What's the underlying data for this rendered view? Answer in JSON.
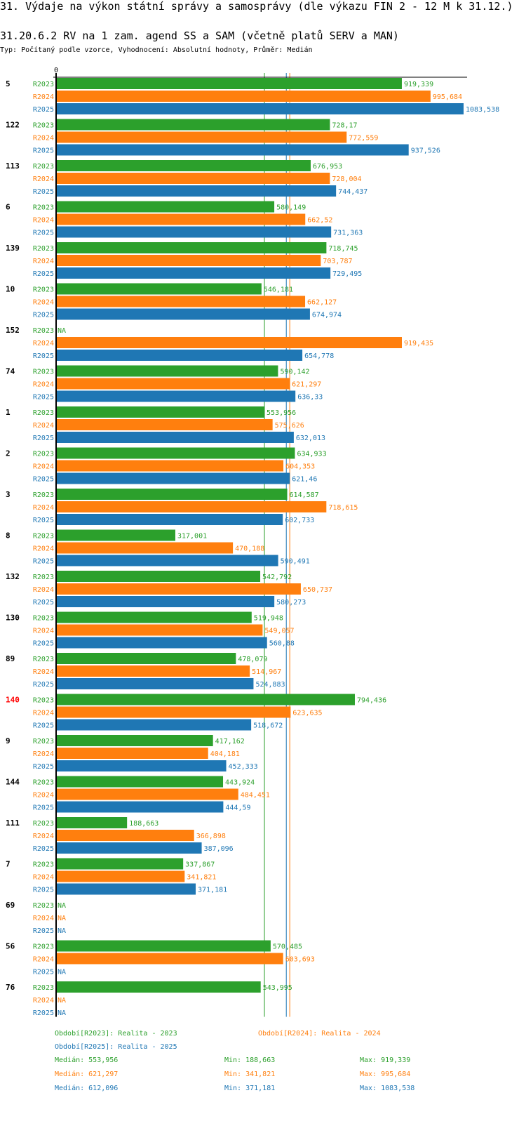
{
  "header": {
    "title": "31. Výdaje na výkon státní správy a samosprávy (dle výkazu FIN 2 - 12 M k 31.12.)",
    "subtitle": "31.20.6.2 RV na 1 zam. agend SS a SAM (včetně platů SERV a MAN)",
    "meta": "Typ: Počítaný podle vzorce, Vyhodnocení: Absolutní hodnoty, Průměr: Medián"
  },
  "colors": {
    "R2023": "#2ca02c",
    "R2024": "#ff7f0e",
    "R2025": "#1f77b4",
    "highlight": "#ff0000",
    "axis": "#000000"
  },
  "chart_data": {
    "type": "bar",
    "orientation": "horizontal",
    "xlim": [
      0,
      1083.538
    ],
    "x_tick_labels": [
      "0"
    ],
    "series_names": [
      "R2023",
      "R2024",
      "R2025"
    ],
    "categories": [
      {
        "label": "5",
        "highlight": false,
        "values": [
          919.339,
          995.684,
          1083.538
        ],
        "labels": [
          "919,339",
          "995,684",
          "1083,538"
        ]
      },
      {
        "label": "122",
        "highlight": false,
        "values": [
          728.17,
          772.559,
          937.526
        ],
        "labels": [
          "728,17",
          "772,559",
          "937,526"
        ]
      },
      {
        "label": "113",
        "highlight": false,
        "values": [
          676.953,
          728.004,
          744.437
        ],
        "labels": [
          "676,953",
          "728,004",
          "744,437"
        ]
      },
      {
        "label": "6",
        "highlight": false,
        "values": [
          580.149,
          662.52,
          731.363
        ],
        "labels": [
          "580,149",
          "662,52",
          "731,363"
        ]
      },
      {
        "label": "139",
        "highlight": false,
        "values": [
          718.745,
          703.787,
          729.495
        ],
        "labels": [
          "718,745",
          "703,787",
          "729,495"
        ]
      },
      {
        "label": "10",
        "highlight": false,
        "values": [
          546.181,
          662.127,
          674.974
        ],
        "labels": [
          "546,181",
          "662,127",
          "674,974"
        ]
      },
      {
        "label": "152",
        "highlight": false,
        "values": [
          null,
          919.435,
          654.778
        ],
        "labels": [
          "NA",
          "919,435",
          "654,778"
        ]
      },
      {
        "label": "74",
        "highlight": false,
        "values": [
          590.142,
          621.297,
          636.33
        ],
        "labels": [
          "590,142",
          "621,297",
          "636,33"
        ]
      },
      {
        "label": "1",
        "highlight": false,
        "values": [
          553.956,
          575.626,
          632.013
        ],
        "labels": [
          "553,956",
          "575,626",
          "632,013"
        ]
      },
      {
        "label": "2",
        "highlight": false,
        "values": [
          634.933,
          604.353,
          621.46
        ],
        "labels": [
          "634,933",
          "604,353",
          "621,46"
        ]
      },
      {
        "label": "3",
        "highlight": false,
        "values": [
          614.587,
          718.615,
          602.733
        ],
        "labels": [
          "614,587",
          "718,615",
          "602,733"
        ]
      },
      {
        "label": "8",
        "highlight": false,
        "values": [
          317.001,
          470.188,
          590.491
        ],
        "labels": [
          "317,001",
          "470,188",
          "590,491"
        ]
      },
      {
        "label": "132",
        "highlight": false,
        "values": [
          542.792,
          650.737,
          580.273
        ],
        "labels": [
          "542,792",
          "650,737",
          "580,273"
        ]
      },
      {
        "label": "130",
        "highlight": false,
        "values": [
          519.948,
          549.057,
          560.88
        ],
        "labels": [
          "519,948",
          "549,057",
          "560,88"
        ]
      },
      {
        "label": "89",
        "highlight": false,
        "values": [
          478.079,
          514.967,
          524.883
        ],
        "labels": [
          "478,079",
          "514,967",
          "524,883"
        ]
      },
      {
        "label": "140",
        "highlight": true,
        "values": [
          794.436,
          623.635,
          518.672
        ],
        "labels": [
          "794,436",
          "623,635",
          "518,672"
        ]
      },
      {
        "label": "9",
        "highlight": false,
        "values": [
          417.162,
          404.181,
          452.333
        ],
        "labels": [
          "417,162",
          "404,181",
          "452,333"
        ]
      },
      {
        "label": "144",
        "highlight": false,
        "values": [
          443.924,
          484.451,
          444.59
        ],
        "labels": [
          "443,924",
          "484,451",
          "444,59"
        ]
      },
      {
        "label": "111",
        "highlight": false,
        "values": [
          188.663,
          366.898,
          387.096
        ],
        "labels": [
          "188,663",
          "366,898",
          "387,096"
        ]
      },
      {
        "label": "7",
        "highlight": false,
        "values": [
          337.867,
          341.821,
          371.181
        ],
        "labels": [
          "337,867",
          "341,821",
          "371,181"
        ]
      },
      {
        "label": "69",
        "highlight": false,
        "values": [
          null,
          null,
          null
        ],
        "labels": [
          "NA",
          "NA",
          "NA"
        ]
      },
      {
        "label": "56",
        "highlight": false,
        "values": [
          570.485,
          603.693,
          null
        ],
        "labels": [
          "570,485",
          "603,693",
          "NA"
        ]
      },
      {
        "label": "76",
        "highlight": false,
        "values": [
          543.995,
          null,
          null
        ],
        "labels": [
          "543,995",
          "NA",
          "NA"
        ]
      }
    ],
    "reference_lines": [
      {
        "series": "R2023",
        "type": "median",
        "value": 553.956
      },
      {
        "series": "R2025",
        "type": "median",
        "value": 612.096
      },
      {
        "series": "R2024",
        "type": "median",
        "value": 621.297
      }
    ],
    "legend_placement": "bottom"
  },
  "legend": {
    "items": [
      {
        "series": "R2023",
        "text": "Období[R2023]: Realita - 2023"
      },
      {
        "series": "R2024",
        "text": "Období[R2024]: Realita - 2024"
      },
      {
        "series": "R2025",
        "text": "Období[R2025]: Realita - 2025"
      }
    ],
    "stats": [
      {
        "series": "R2023",
        "median": "Medián: 553,956",
        "min": "Min: 188,663",
        "max": "Max: 919,339"
      },
      {
        "series": "R2024",
        "median": "Medián: 621,297",
        "min": "Min: 341,821",
        "max": "Max: 995,684"
      },
      {
        "series": "R2025",
        "median": "Medián: 612,096",
        "min": "Min: 371,181",
        "max": "Max: 1083,538"
      }
    ]
  }
}
